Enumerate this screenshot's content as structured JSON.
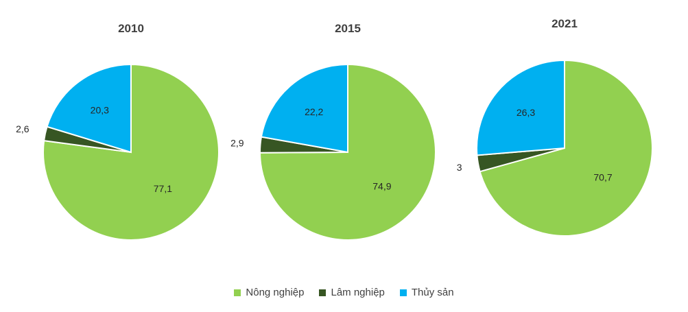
{
  "chart_data": [
    {
      "type": "pie",
      "title": "2010",
      "categories": [
        "Nông nghiệp",
        "Lâm nghiệp",
        "Thủy sản"
      ],
      "values": [
        77.1,
        2.6,
        20.3
      ],
      "labels": [
        "77,1",
        "2,6",
        "20,3"
      ]
    },
    {
      "type": "pie",
      "title": "2015",
      "categories": [
        "Nông nghiệp",
        "Lâm nghiệp",
        "Thủy sản"
      ],
      "values": [
        74.9,
        2.9,
        22.2
      ],
      "labels": [
        "74,9",
        "2,9",
        "22,2"
      ]
    },
    {
      "type": "pie",
      "title": "2021",
      "categories": [
        "Nông nghiệp",
        "Lâm nghiệp",
        "Thủy sản"
      ],
      "values": [
        70.7,
        3,
        26.3
      ],
      "labels": [
        "70,7",
        "3",
        "26,3"
      ]
    }
  ],
  "legend": {
    "placement": "bottom",
    "items": [
      {
        "label": "Nông nghiệp",
        "color": "#92d050"
      },
      {
        "label": "Lâm nghiệp",
        "color": "#375623"
      },
      {
        "label": "Thủy sản",
        "color": "#00b0f0"
      }
    ]
  }
}
